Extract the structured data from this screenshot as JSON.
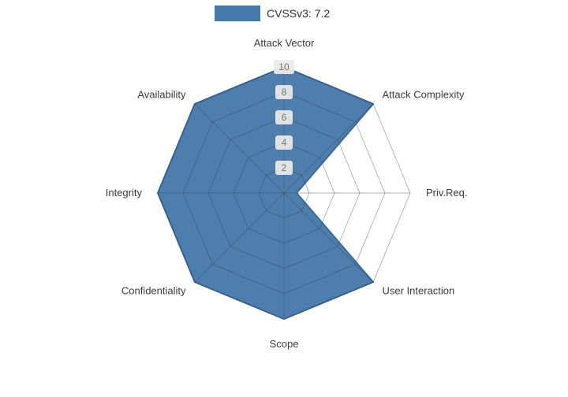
{
  "chart_data": {
    "type": "radar",
    "legend": {
      "label": "CVSSv3: 7.2"
    },
    "categories": [
      "Attack Vector",
      "Attack Complexity",
      "Priv.Req.",
      "User Interaction",
      "Scope",
      "Confidentiality",
      "Integrity",
      "Availability"
    ],
    "values": [
      10,
      10,
      1,
      10,
      10,
      10,
      10,
      10
    ],
    "radial_ticks": [
      2,
      4,
      6,
      8,
      10
    ],
    "range": [
      0,
      10
    ],
    "grid": true,
    "legend_position": "top-center",
    "colors": {
      "fill": "#4477aa",
      "edge": "#3a6a99",
      "grid_line": "rgba(55,65,80,0.38)",
      "tick_box": "#ececec",
      "tick_text": "#777777",
      "axis_label_text": "#3b3b3b"
    }
  }
}
